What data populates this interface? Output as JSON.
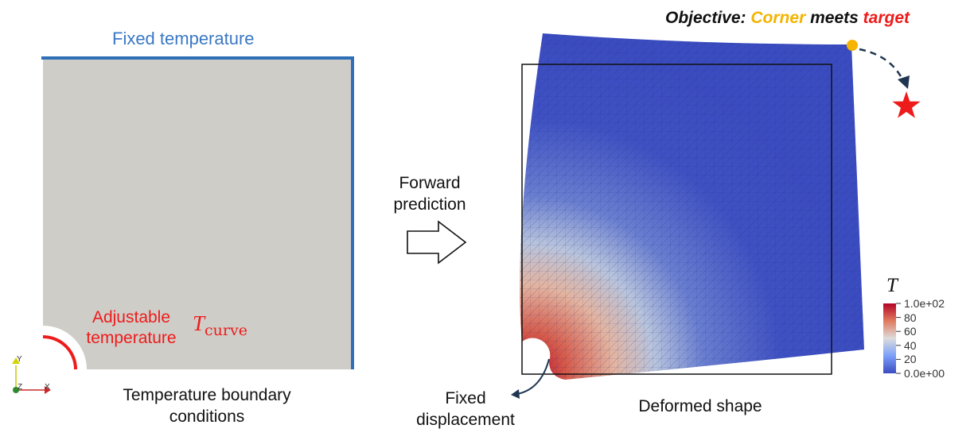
{
  "left_panel": {
    "fixed_temperature_label": "Fixed temperature",
    "adjustable_label_line1": "Adjustable",
    "adjustable_label_line2": "temperature",
    "curve_symbol": "T",
    "curve_subscript": "curve",
    "caption_line1": "Temperature boundary",
    "caption_line2": "conditions",
    "axes": {
      "y": "Y",
      "z": "Z",
      "x": "X"
    }
  },
  "middle": {
    "forward_line1": "Forward",
    "forward_line2": "prediction",
    "arrow_icon": "right-outline-arrow-icon"
  },
  "right_panel": {
    "objective": {
      "prefix": "Objective:",
      "corner": "Corner",
      "meets": "meets",
      "target": "target"
    },
    "caption": "Deformed shape",
    "fixed_disp_line1": "Fixed",
    "fixed_disp_line2": "displacement",
    "colorbar": {
      "symbol": "T",
      "ticks": [
        "1.0e+02",
        "80",
        "60",
        "40",
        "20",
        "0.0e+00"
      ],
      "min": 0,
      "max": 100
    }
  },
  "colors": {
    "plate_fill": "#cfcdc8",
    "fixed_edge": "#2f6fb8",
    "adjustable": "#ee1b1b",
    "corner": "#f4b400",
    "target": "#ee1b1b",
    "cold": "#3b4cc0",
    "hot": "#b40426"
  }
}
